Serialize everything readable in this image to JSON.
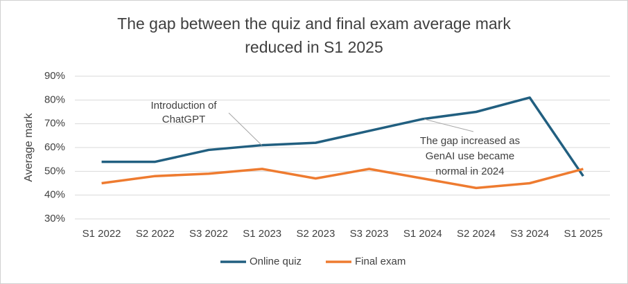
{
  "chart_data": {
    "type": "line",
    "title": [
      "The gap between the quiz and final exam average mark",
      "reduced in S1 2025"
    ],
    "y_label": "Average mark",
    "categories": [
      "S1 2022",
      "S2 2022",
      "S3 2022",
      "S1 2023",
      "S2 2023",
      "S3 2023",
      "S1 2024",
      "S2 2024",
      "S3 2024",
      "S1 2025"
    ],
    "series": [
      {
        "name": "Online quiz",
        "color": "#215f80",
        "values": [
          54,
          54,
          59,
          61,
          62,
          67,
          72,
          75,
          81,
          48
        ]
      },
      {
        "name": "Final exam",
        "color": "#ee7b30",
        "values": [
          45,
          48,
          49,
          51,
          47,
          51,
          47,
          43,
          45,
          51
        ]
      }
    ],
    "ylim": [
      30,
      90
    ],
    "yticks": [
      {
        "value": 30,
        "label": "30%"
      },
      {
        "value": 40,
        "label": "40%"
      },
      {
        "value": 50,
        "label": "50%"
      },
      {
        "value": 60,
        "label": "60%"
      },
      {
        "value": 70,
        "label": "70%"
      },
      {
        "value": 80,
        "label": "80%"
      },
      {
        "value": 90,
        "label": "90%"
      }
    ],
    "grid": true,
    "legend": "bottom",
    "annotations": [
      [
        "Introduction of",
        "ChatGPT"
      ],
      [
        "The gap increased as",
        "GenAI use became",
        "normal in 2024"
      ]
    ]
  }
}
